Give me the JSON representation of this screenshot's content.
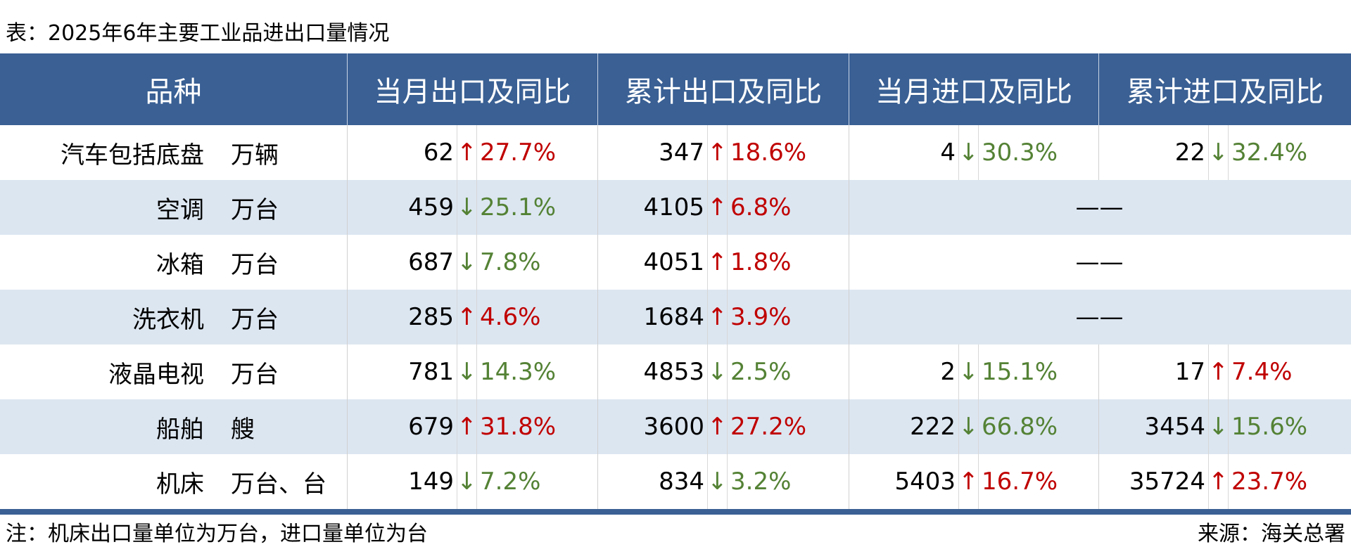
{
  "title": "表：2025年6年主要工业品进出口量情况",
  "headers": [
    "品种",
    "当月出口及同比",
    "累计出口及同比",
    "当月进口及同比",
    "累计进口及同比"
  ],
  "colors": {
    "header": "#3a6094",
    "stripe": "#dce6f1",
    "up": "#c00000",
    "down": "#548235"
  },
  "rows": [
    {
      "name": "汽车包括底盘",
      "unit": "万辆",
      "cols": [
        {
          "num": "62",
          "dir": "up",
          "arrow": "↑",
          "pct": "27.7%"
        },
        {
          "num": "347",
          "dir": "up",
          "arrow": "↑",
          "pct": "18.6%"
        },
        {
          "num": "4",
          "dir": "down",
          "arrow": "↓",
          "pct": "30.3%"
        },
        {
          "num": "22",
          "dir": "down",
          "arrow": "↓",
          "pct": "32.4%"
        }
      ]
    },
    {
      "name": "空调",
      "unit": "万台",
      "cols": [
        {
          "num": "459",
          "dir": "down",
          "arrow": "↓",
          "pct": "25.1%"
        },
        {
          "num": "4105",
          "dir": "up",
          "arrow": "↑",
          "pct": "6.8%"
        }
      ],
      "import": "——"
    },
    {
      "name": "冰箱",
      "unit": "万台",
      "cols": [
        {
          "num": "687",
          "dir": "down",
          "arrow": "↓",
          "pct": "7.8%"
        },
        {
          "num": "4051",
          "dir": "up",
          "arrow": "↑",
          "pct": "1.8%"
        }
      ],
      "import": "——"
    },
    {
      "name": "洗衣机",
      "unit": "万台",
      "cols": [
        {
          "num": "285",
          "dir": "up",
          "arrow": "↑",
          "pct": "4.6%"
        },
        {
          "num": "1684",
          "dir": "up",
          "arrow": "↑",
          "pct": "3.9%"
        }
      ],
      "import": "——"
    },
    {
      "name": "液晶电视",
      "unit": "万台",
      "cols": [
        {
          "num": "781",
          "dir": "down",
          "arrow": "↓",
          "pct": "14.3%"
        },
        {
          "num": "4853",
          "dir": "down",
          "arrow": "↓",
          "pct": "2.5%"
        },
        {
          "num": "2",
          "dir": "down",
          "arrow": "↓",
          "pct": "15.1%"
        },
        {
          "num": "17",
          "dir": "up",
          "arrow": "↑",
          "pct": "7.4%"
        }
      ]
    },
    {
      "name": "船舶",
      "unit": "艘",
      "cols": [
        {
          "num": "679",
          "dir": "up",
          "arrow": "↑",
          "pct": "31.8%"
        },
        {
          "num": "3600",
          "dir": "up",
          "arrow": "↑",
          "pct": "27.2%"
        },
        {
          "num": "222",
          "dir": "down",
          "arrow": "↓",
          "pct": "66.8%"
        },
        {
          "num": "3454",
          "dir": "down",
          "arrow": "↓",
          "pct": "15.6%"
        }
      ]
    },
    {
      "name": "机床",
      "unit": "万台、台",
      "cols": [
        {
          "num": "149",
          "dir": "down",
          "arrow": "↓",
          "pct": "7.2%"
        },
        {
          "num": "834",
          "dir": "down",
          "arrow": "↓",
          "pct": "3.2%"
        },
        {
          "num": "5403",
          "dir": "up",
          "arrow": "↑",
          "pct": "16.7%"
        },
        {
          "num": "35724",
          "dir": "up",
          "arrow": "↑",
          "pct": "23.7%"
        }
      ]
    }
  ],
  "note": "注：机床出口量单位为万台，进口量单位为台",
  "source": "来源：海关总署"
}
